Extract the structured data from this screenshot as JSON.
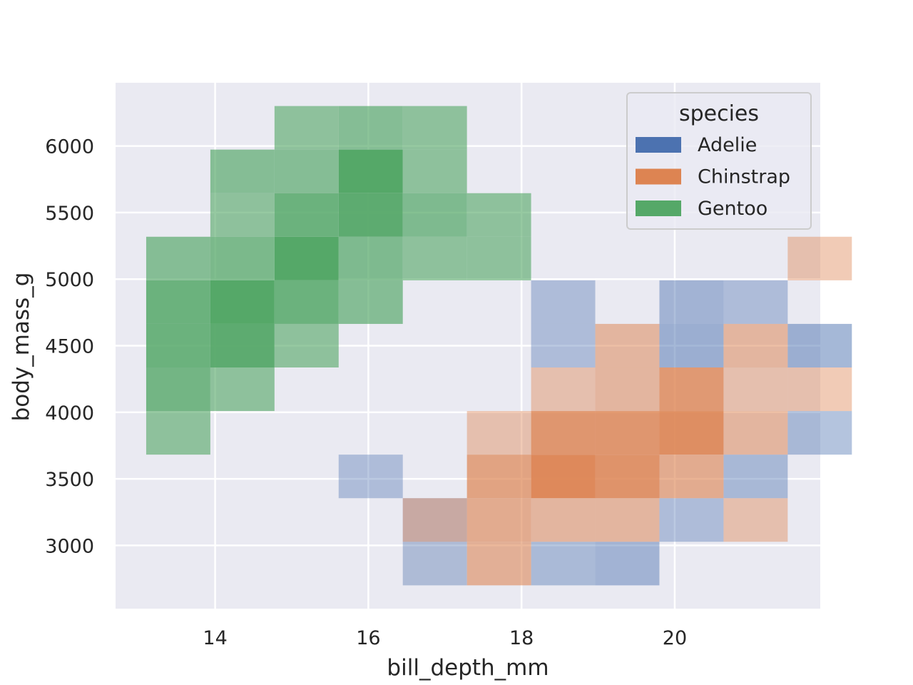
{
  "chart_data": {
    "type": "heatmap",
    "xlabel": "bill_depth_mm",
    "ylabel": "body_mass_g",
    "xlim": [
      12.7,
      21.9
    ],
    "ylim": [
      2525,
      6475
    ],
    "x_ticks": [
      14,
      16,
      18,
      20
    ],
    "y_ticks": [
      3000,
      3500,
      4000,
      4500,
      5000,
      5500,
      6000
    ],
    "x_tick_labels": [
      "14",
      "16",
      "18",
      "20"
    ],
    "y_tick_labels": [
      "3000",
      "3500",
      "4000",
      "4500",
      "5000",
      "5500",
      "6000"
    ],
    "grid": true,
    "background": "#eaeaf2",
    "bin_x_start": 13.1,
    "bin_width": 0.8375,
    "bin_y_start": 2700,
    "bin_height": 327.3,
    "legend": {
      "title": "species",
      "placement": "upper right"
    },
    "series": [
      {
        "name": "Adelie",
        "color": "#4c72b0",
        "bins": [
          {
            "x": 3,
            "y": 2,
            "a": 0.38
          },
          {
            "x": 4,
            "y": 0,
            "a": 0.38
          },
          {
            "x": 4,
            "y": 1,
            "a": 0.31
          },
          {
            "x": 6,
            "y": 0,
            "a": 0.4
          },
          {
            "x": 7,
            "y": 0,
            "a": 0.45
          },
          {
            "x": 8,
            "y": 1,
            "a": 0.38
          },
          {
            "x": 9,
            "y": 2,
            "a": 0.42
          },
          {
            "x": 10,
            "y": 3,
            "a": 0.42
          },
          {
            "x": 6,
            "y": 5,
            "a": 0.38
          },
          {
            "x": 6,
            "y": 6,
            "a": 0.38
          },
          {
            "x": 8,
            "y": 5,
            "a": 0.5
          },
          {
            "x": 8,
            "y": 6,
            "a": 0.45
          },
          {
            "x": 9,
            "y": 6,
            "a": 0.38
          },
          {
            "x": 10,
            "y": 5,
            "a": 0.5
          }
        ]
      },
      {
        "name": "Chinstrap",
        "color": "#dd8452",
        "bins": [
          {
            "x": 4,
            "y": 0,
            "a": 0.02
          },
          {
            "x": 5,
            "y": 0,
            "a": 0.58
          },
          {
            "x": 4,
            "y": 1,
            "a": 0.42
          },
          {
            "x": 5,
            "y": 1,
            "a": 0.62
          },
          {
            "x": 6,
            "y": 1,
            "a": 0.52
          },
          {
            "x": 7,
            "y": 1,
            "a": 0.52
          },
          {
            "x": 9,
            "y": 1,
            "a": 0.42
          },
          {
            "x": 5,
            "y": 2,
            "a": 0.7
          },
          {
            "x": 6,
            "y": 2,
            "a": 0.95
          },
          {
            "x": 7,
            "y": 2,
            "a": 0.85
          },
          {
            "x": 8,
            "y": 2,
            "a": 0.62
          },
          {
            "x": 5,
            "y": 3,
            "a": 0.42
          },
          {
            "x": 6,
            "y": 3,
            "a": 0.82
          },
          {
            "x": 7,
            "y": 3,
            "a": 0.82
          },
          {
            "x": 8,
            "y": 3,
            "a": 0.9
          },
          {
            "x": 9,
            "y": 3,
            "a": 0.52
          },
          {
            "x": 6,
            "y": 4,
            "a": 0.42
          },
          {
            "x": 7,
            "y": 4,
            "a": 0.52
          },
          {
            "x": 8,
            "y": 4,
            "a": 0.8
          },
          {
            "x": 9,
            "y": 4,
            "a": 0.42
          },
          {
            "x": 10,
            "y": 4,
            "a": 0.42
          },
          {
            "x": 7,
            "y": 5,
            "a": 0.52
          },
          {
            "x": 9,
            "y": 5,
            "a": 0.52
          },
          {
            "x": 10,
            "y": 7,
            "a": 0.42
          }
        ]
      },
      {
        "name": "Gentoo",
        "color": "#55a868",
        "bins": [
          {
            "x": 0,
            "y": 3,
            "a": 0.62
          },
          {
            "x": 0,
            "y": 4,
            "a": 0.8
          },
          {
            "x": 1,
            "y": 4,
            "a": 0.62
          },
          {
            "x": 0,
            "y": 5,
            "a": 0.85
          },
          {
            "x": 1,
            "y": 5,
            "a": 0.95
          },
          {
            "x": 2,
            "y": 5,
            "a": 0.62
          },
          {
            "x": 0,
            "y": 6,
            "a": 0.85
          },
          {
            "x": 1,
            "y": 6,
            "a": 1.0
          },
          {
            "x": 2,
            "y": 6,
            "a": 0.85
          },
          {
            "x": 3,
            "y": 6,
            "a": 0.68
          },
          {
            "x": 0,
            "y": 7,
            "a": 0.68
          },
          {
            "x": 1,
            "y": 7,
            "a": 0.75
          },
          {
            "x": 2,
            "y": 7,
            "a": 1.0
          },
          {
            "x": 3,
            "y": 7,
            "a": 0.72
          },
          {
            "x": 4,
            "y": 7,
            "a": 0.62
          },
          {
            "x": 5,
            "y": 7,
            "a": 0.62
          },
          {
            "x": 1,
            "y": 8,
            "a": 0.62
          },
          {
            "x": 2,
            "y": 8,
            "a": 0.85
          },
          {
            "x": 3,
            "y": 8,
            "a": 0.95
          },
          {
            "x": 4,
            "y": 8,
            "a": 0.72
          },
          {
            "x": 5,
            "y": 8,
            "a": 0.62
          },
          {
            "x": 1,
            "y": 9,
            "a": 0.68
          },
          {
            "x": 2,
            "y": 9,
            "a": 0.68
          },
          {
            "x": 3,
            "y": 9,
            "a": 1.0
          },
          {
            "x": 4,
            "y": 9,
            "a": 0.62
          },
          {
            "x": 2,
            "y": 10,
            "a": 0.62
          },
          {
            "x": 3,
            "y": 10,
            "a": 0.68
          },
          {
            "x": 4,
            "y": 10,
            "a": 0.62
          }
        ]
      }
    ]
  }
}
